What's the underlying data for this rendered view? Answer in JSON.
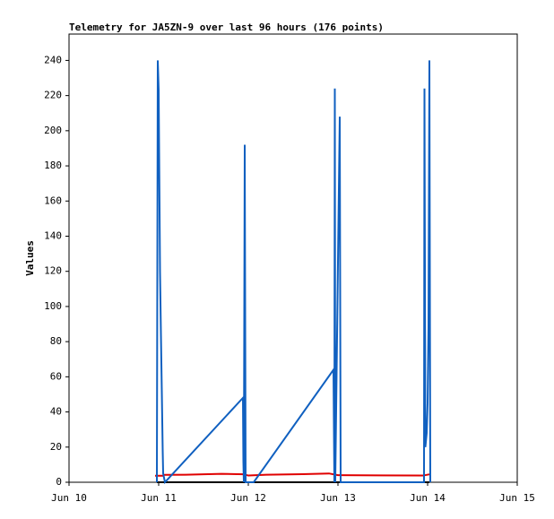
{
  "chart_data": {
    "type": "line",
    "title": "Telemetry for JA5ZN-9 over last 96 hours (176 points)",
    "y_label": "Values",
    "xlim": [
      10,
      15
    ],
    "xticks": [
      {
        "value": 10,
        "label": "Jun 10"
      },
      {
        "value": 11,
        "label": "Jun 11"
      },
      {
        "value": 12,
        "label": "Jun 12"
      },
      {
        "value": 13,
        "label": "Jun 13"
      },
      {
        "value": 14,
        "label": "Jun 14"
      },
      {
        "value": 15,
        "label": "Jun 15"
      }
    ],
    "ylim": [
      0,
      255
    ],
    "yticks": [
      0,
      20,
      40,
      60,
      80,
      100,
      120,
      140,
      160,
      180,
      200,
      220,
      240
    ],
    "grid": false,
    "series": [
      {
        "color": "#000000",
        "x": [
          10.98,
          14.02
        ],
        "values": [
          0,
          0
        ]
      },
      {
        "color": "#e00000",
        "x": [
          10.96,
          11.05,
          11.06,
          11.3,
          11.7,
          11.95,
          12.0,
          12.2,
          12.6,
          12.9,
          13.0,
          13.5,
          13.95,
          14.02
        ],
        "values": [
          3.7,
          3.7,
          4.2,
          4.3,
          4.8,
          4.5,
          3.8,
          4.3,
          4.6,
          5.0,
          4.0,
          3.9,
          3.8,
          4.5
        ]
      },
      {
        "color": "#1060c0",
        "x": [
          10.98,
          10.99,
          11.0,
          11.005,
          11.01,
          11.015,
          11.025,
          11.035,
          11.045,
          11.05,
          11.07,
          11.94,
          11.945,
          11.95,
          11.96,
          11.97,
          12.06,
          12.95,
          12.96,
          12.965,
          12.97,
          13.02,
          13.03,
          13.96,
          13.965,
          13.975,
          13.99,
          14.0,
          14.01,
          14.02,
          14.03
        ],
        "values": [
          0,
          240,
          223,
          188,
          155,
          120,
          85,
          52,
          18,
          5,
          0,
          48,
          12,
          0,
          192,
          0,
          0,
          64,
          0,
          224,
          0,
          208,
          0,
          0,
          224,
          20,
          28,
          45,
          88,
          240,
          0
        ]
      }
    ]
  }
}
